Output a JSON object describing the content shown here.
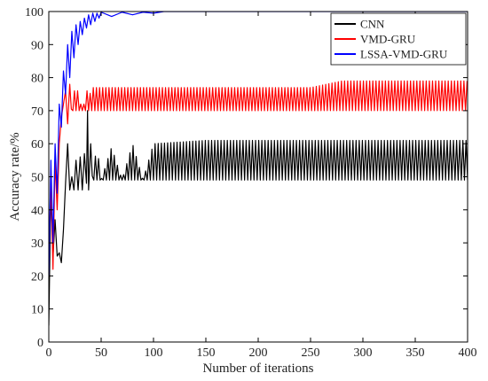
{
  "chart_data": {
    "type": "line",
    "title": "",
    "xlabel": "Number of iterations",
    "ylabel": "Accuracy rate/%",
    "xlim": [
      0,
      400
    ],
    "ylim": [
      0,
      100
    ],
    "x_ticks": [
      0,
      50,
      100,
      150,
      200,
      250,
      300,
      350,
      400
    ],
    "y_ticks": [
      0,
      10,
      20,
      30,
      40,
      50,
      60,
      70,
      80,
      90,
      100
    ],
    "grid": false,
    "legend_position": "top-right",
    "series": [
      {
        "name": "CNN",
        "color": "#000000",
        "x": [
          0,
          2,
          4,
          6,
          8,
          10,
          12,
          14,
          16,
          18,
          20,
          22,
          24,
          26,
          28,
          30,
          32,
          34,
          36,
          37,
          38,
          40,
          42,
          44,
          46,
          48,
          50,
          60,
          70,
          80,
          90,
          100,
          150,
          200,
          250,
          300,
          350,
          400
        ],
        "y": [
          5,
          47,
          26,
          37,
          26,
          27,
          24,
          34,
          48,
          60,
          46,
          50,
          46,
          55,
          46,
          56,
          46,
          57,
          48,
          70,
          46,
          60,
          47,
          59,
          48,
          58,
          49,
          59,
          49,
          60,
          49,
          60,
          61,
          61,
          61,
          61,
          61,
          61
        ],
        "oscillation": {
          "from_x": 40,
          "low": 49,
          "high": 61,
          "period": 3
        }
      },
      {
        "name": "VMD-GRU",
        "color": "#ff0000",
        "x": [
          0,
          2,
          4,
          6,
          8,
          10,
          12,
          14,
          16,
          18,
          20,
          22,
          24,
          26,
          28,
          30,
          32,
          34,
          36,
          38,
          40,
          50,
          100,
          150,
          200,
          250,
          280,
          300,
          350,
          400
        ],
        "y": [
          25,
          48,
          22,
          55,
          40,
          60,
          68,
          72,
          76,
          66,
          78,
          68,
          78,
          70,
          78,
          70,
          78,
          70,
          78,
          70,
          77,
          77,
          77,
          77,
          77,
          77,
          79,
          79,
          79,
          79
        ],
        "oscillation": {
          "from_x": 20,
          "low": 70,
          "high": 77,
          "period": 3
        }
      },
      {
        "name": "LSSA-VMD-GRU",
        "color": "#0000ff",
        "x": [
          0,
          2,
          4,
          6,
          8,
          10,
          12,
          14,
          16,
          18,
          20,
          22,
          24,
          26,
          28,
          30,
          32,
          34,
          36,
          38,
          40,
          42,
          44,
          46,
          48,
          50,
          60,
          70,
          80,
          90,
          100,
          110,
          120,
          150,
          200,
          250,
          300,
          350,
          400
        ],
        "y": [
          20,
          55,
          30,
          60,
          45,
          72,
          65,
          82,
          75,
          90,
          80,
          94,
          86,
          96,
          90,
          97,
          93,
          98,
          95,
          99,
          96,
          99.5,
          97,
          99.5,
          98,
          99.8,
          98.5,
          99.8,
          99,
          99.8,
          99.5,
          100,
          100,
          100,
          100,
          100,
          100,
          100,
          100
        ]
      }
    ]
  }
}
